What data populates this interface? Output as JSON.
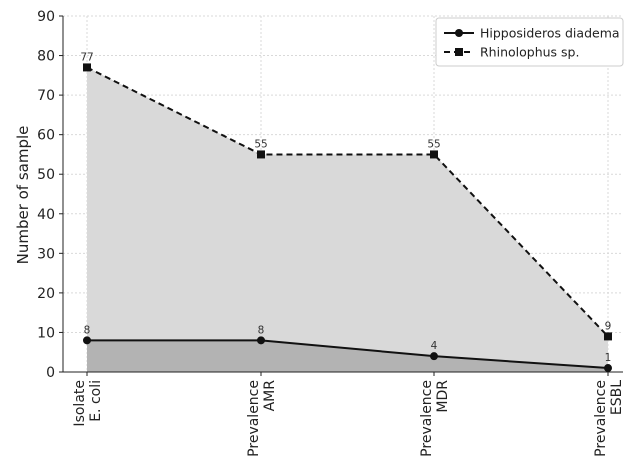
{
  "chart_data": {
    "type": "line",
    "title": "",
    "xlabel": "",
    "ylabel": "Number of sample",
    "ylim": [
      0,
      90
    ],
    "yticks": [
      0,
      10,
      20,
      30,
      40,
      50,
      60,
      70,
      80,
      90
    ],
    "grid": true,
    "legend_position": "top-right",
    "categories": [
      [
        "Isolate",
        "E. coli"
      ],
      [
        "Prevalence",
        "AMR"
      ],
      [
        "Prevalence",
        "MDR"
      ],
      [
        "Prevalence",
        "ESBL"
      ]
    ],
    "series": [
      {
        "name": "Hipposideros diadema",
        "values": [
          8,
          8,
          4,
          1
        ],
        "marker": "circle",
        "line": "solid",
        "color": "#111111",
        "fill": "#b3b3b3"
      },
      {
        "name": "Rhinolophus sp.",
        "values": [
          77,
          55,
          55,
          9
        ],
        "marker": "square",
        "line": "dashed",
        "color": "#111111",
        "fill": "#d9d9d9"
      }
    ]
  }
}
